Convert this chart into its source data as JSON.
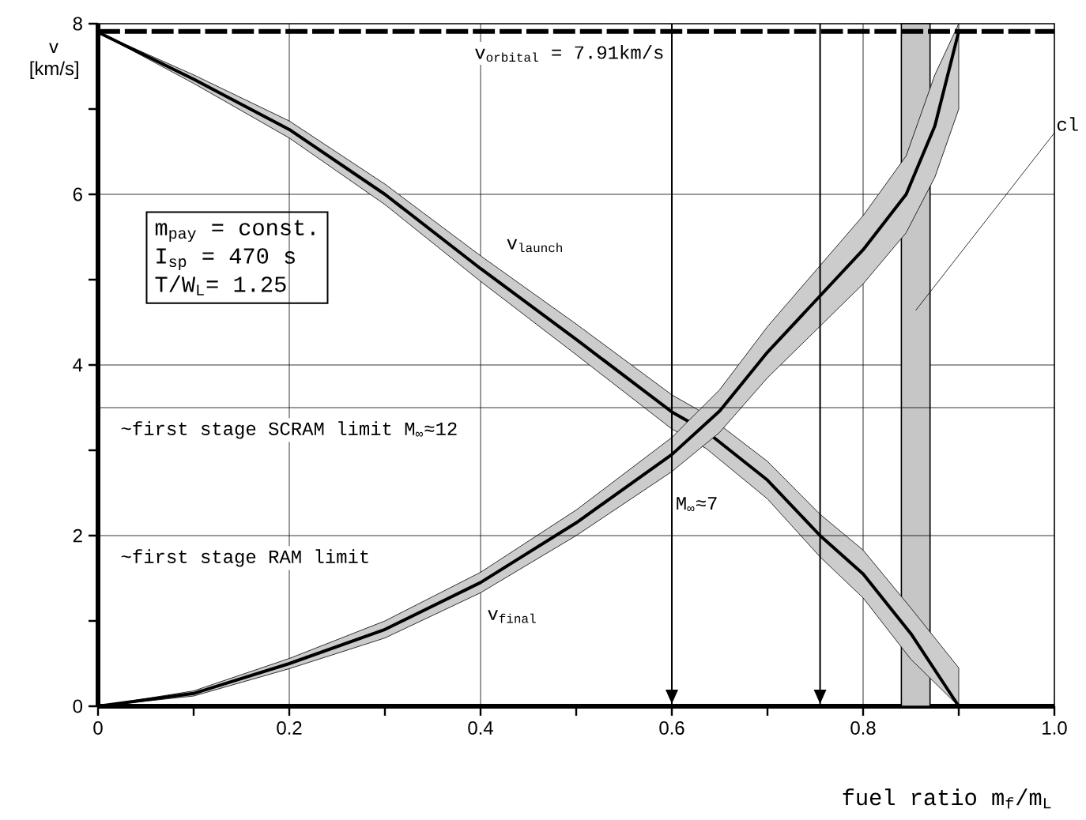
{
  "chart_data": {
    "type": "line",
    "xlabel": "fuel ratio m$_{f}$/m$_{L}$",
    "ylabel": "v [km/s]",
    "xlim": [
      0,
      1.0
    ],
    "ylim": [
      0,
      8
    ],
    "xticks": [
      0,
      {
        "value": 0.1,
        "label": null
      },
      0.2,
      {
        "value": 0.3,
        "label": null
      },
      0.4,
      {
        "value": 0.5,
        "label": null
      },
      0.6,
      {
        "value": 0.7,
        "label": null
      },
      0.8,
      {
        "value": 0.9,
        "label": null
      },
      {
        "value": 1.0,
        "label": "1.0"
      }
    ],
    "yticks": [
      0,
      {
        "value": 1,
        "label": null
      },
      2,
      {
        "value": 3,
        "label": null
      },
      4,
      {
        "value": 5,
        "label": null
      },
      6,
      {
        "value": 7,
        "label": null
      },
      8
    ],
    "grid": true,
    "legend": false,
    "line_style": "solid",
    "marker": "none",
    "series": [
      {
        "name": "v$_{launch}$",
        "color": "#000000",
        "x": [
          0,
          0.1,
          0.2,
          0.3,
          0.4,
          0.5,
          0.6,
          0.636,
          0.7,
          0.755,
          0.8,
          0.85,
          0.9
        ],
        "values": [
          7.9,
          7.35,
          6.76,
          6.0,
          5.13,
          4.3,
          3.45,
          3.22,
          2.65,
          2.0,
          1.55,
          0.85,
          0
        ],
        "lower": [
          7.9,
          7.3,
          6.66,
          5.88,
          4.98,
          4.12,
          3.25,
          3.02,
          2.43,
          1.75,
          1.27,
          0.55,
          0
        ],
        "upper": [
          7.9,
          7.4,
          6.86,
          6.12,
          5.28,
          4.48,
          3.65,
          3.42,
          2.87,
          2.25,
          1.83,
          1.15,
          0.45
        ]
      },
      {
        "name": "v$_{final}$",
        "color": "#000000",
        "x": [
          0,
          0.1,
          0.2,
          0.3,
          0.4,
          0.5,
          0.6,
          0.65,
          0.7,
          0.75,
          0.8,
          0.845,
          0.875,
          0.9
        ],
        "values": [
          0,
          0.15,
          0.5,
          0.9,
          1.45,
          2.15,
          2.95,
          3.46,
          4.15,
          4.75,
          5.35,
          6.0,
          6.8,
          7.91
        ],
        "lower": [
          0,
          0.12,
          0.44,
          0.8,
          1.33,
          2.0,
          2.75,
          3.21,
          3.85,
          4.4,
          4.95,
          5.55,
          6.2,
          7.0
        ],
        "upper": [
          0,
          0.18,
          0.56,
          1.0,
          1.57,
          2.3,
          3.15,
          3.71,
          4.45,
          5.1,
          5.75,
          6.45,
          7.4,
          8.0
        ]
      }
    ],
    "ref_lines": [
      {
        "axis": "y",
        "value": 7.91,
        "label": "v$_{orbital}$ = 7.91km/s",
        "line_style": "dashed"
      },
      {
        "axis": "y",
        "value": 3.5,
        "label": "~first stage SCRAM limit M$_{∞}$≈12"
      },
      {
        "axis": "y",
        "value": 2,
        "label": "~first stage RAM limit"
      },
      {
        "axis": "x",
        "value": 0.6
      },
      {
        "axis": "x",
        "value": 0.755
      }
    ],
    "bands": [
      {
        "axis": "x",
        "from": 0.84,
        "to": 0.87,
        "label": "cl"
      }
    ],
    "annotations": [
      "m$_{pay}$ = const.",
      "I$_{sp}$ = 470 s",
      "T/W$_{L}$= 1.25",
      "M$_{∞}$≈7"
    ]
  }
}
